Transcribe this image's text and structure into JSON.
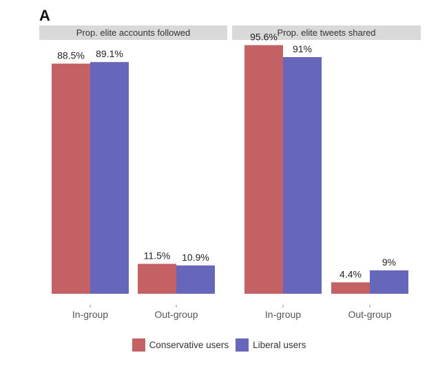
{
  "figure": {
    "panel_label": "A"
  },
  "colors": {
    "conservative": "#c46165",
    "liberal": "#6667bb",
    "strip": "#d9d9d9",
    "strip_text": "#333333",
    "label_text": "#222222",
    "tick_text": "#555555"
  },
  "chart_data": [
    {
      "type": "bar",
      "title": "Prop. elite accounts followed",
      "categories": [
        "In-group",
        "Out-group"
      ],
      "series": [
        {
          "name": "Conservative users",
          "values": [
            88.5,
            11.5
          ],
          "labels": [
            "88.5%",
            "11.5%"
          ]
        },
        {
          "name": "Liberal users",
          "values": [
            89.1,
            10.9
          ],
          "labels": [
            "89.1%",
            "10.9%"
          ]
        }
      ],
      "ylim": [
        0,
        100
      ],
      "grid": false,
      "legend": "bottom"
    },
    {
      "type": "bar",
      "title": "Prop. elite tweets shared",
      "categories": [
        "In-group",
        "Out-group"
      ],
      "series": [
        {
          "name": "Conservative users",
          "values": [
            95.6,
            4.4
          ],
          "labels": [
            "95.6%",
            "4.4%"
          ]
        },
        {
          "name": "Liberal users",
          "values": [
            91,
            9
          ],
          "labels": [
            "91%",
            "9%"
          ]
        }
      ],
      "ylim": [
        0,
        100
      ],
      "grid": false,
      "legend": "bottom"
    }
  ],
  "legend": {
    "items": [
      {
        "label": "Conservative users",
        "color_key": "conservative"
      },
      {
        "label": "Liberal users",
        "color_key": "liberal"
      }
    ]
  }
}
